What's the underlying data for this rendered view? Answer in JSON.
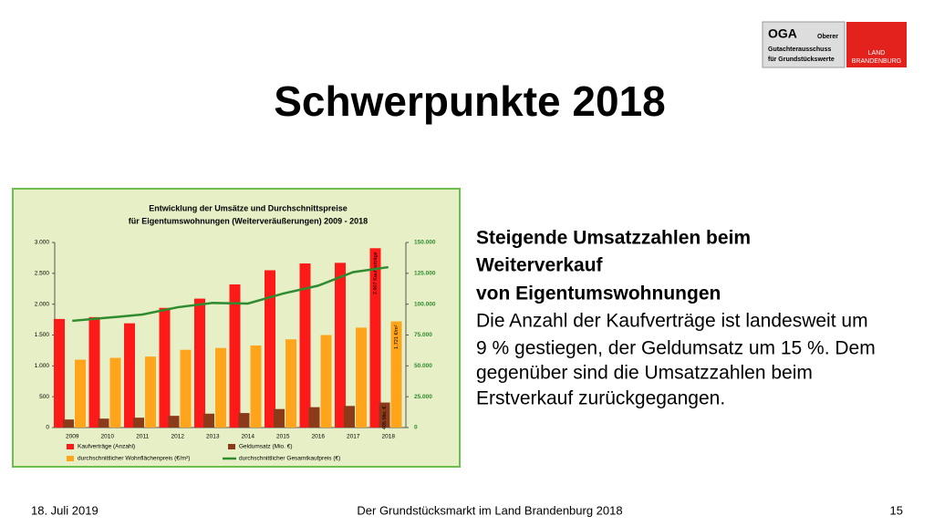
{
  "header": {
    "title": "Schwerpunkte 2018",
    "logo": {
      "abbr": "OGA",
      "lines": [
        "Oberer",
        "Gutachterausschuss",
        "für Grundstückswerte"
      ],
      "state": [
        "LAND",
        "BRANDENBURG"
      ]
    }
  },
  "text": {
    "heading": [
      "Steigende Umsatzzahlen beim",
      "Weiterverkauf",
      "von Eigentumswohnungen"
    ],
    "body": [
      "Die Anzahl der Kaufverträge ist landesweit um",
      "9 % gestiegen, der Geldumsatz um 15 %. Dem",
      "gegenüber sind die Umsatzzahlen beim",
      "Erstverkauf zurückgegangen."
    ]
  },
  "footer": {
    "date": "18. Juli 2019",
    "center": "Der Grundstücksmarkt im Land Brandenburg 2018",
    "page": "15"
  },
  "chart_data": {
    "type": "bar-line",
    "title": [
      "Entwicklung der Umsätze und Durchschnittspreise",
      "für Eigentumswohnungen (Weiterveräußerungen) 2009 - 2018"
    ],
    "categories": [
      "2009",
      "2010",
      "2011",
      "2012",
      "2013",
      "2014",
      "2015",
      "2016",
      "2017",
      "2018"
    ],
    "series": [
      {
        "name": "Kaufverträge (Anzahl)",
        "color": "#ff1a1a",
        "type": "bar",
        "values": [
          1760,
          1790,
          1690,
          1940,
          2090,
          2320,
          2550,
          2660,
          2670,
          2907
        ],
        "value_labels": [
          null,
          null,
          null,
          null,
          null,
          null,
          null,
          null,
          null,
          "2.907 Kaufverträge"
        ]
      },
      {
        "name": "Geldumsatz (Mio. €)",
        "color": "#8b3a1a",
        "type": "bar",
        "values": [
          130,
          145,
          160,
          190,
          225,
          235,
          300,
          330,
          350,
          405
        ],
        "value_labels": [
          null,
          null,
          null,
          null,
          null,
          null,
          null,
          null,
          null,
          "405 Mio. €"
        ]
      },
      {
        "name": "durchschnittlicher Wohnflächenpreis (€/m²)",
        "color": "#ffa41b",
        "type": "bar",
        "values": [
          1100,
          1130,
          1150,
          1260,
          1290,
          1330,
          1430,
          1500,
          1620,
          1721
        ],
        "value_labels": [
          null,
          null,
          null,
          null,
          null,
          null,
          null,
          null,
          null,
          "1.721 €/m²"
        ]
      },
      {
        "name": "durchschnittlicher Gesamtkaufpreis (€)",
        "color": "#2e8b2e",
        "type": "line",
        "axis": "y2",
        "values": [
          86500,
          89000,
          91600,
          97500,
          101000,
          100500,
          108600,
          115000,
          126000,
          130000
        ]
      }
    ],
    "ylim": [
      0,
      3000
    ],
    "yticks": [
      0,
      500,
      {
        "value": 1000,
        "label": "1.000"
      },
      {
        "value": 1500,
        "label": "1.500"
      },
      {
        "value": 2000,
        "label": "2.000"
      },
      {
        "value": 2500,
        "label": "2.500"
      },
      {
        "value": 3000,
        "label": "3.000"
      }
    ],
    "y2lim": [
      0,
      150000
    ],
    "y2ticks": [
      0,
      {
        "value": 25000,
        "label": "25.000"
      },
      {
        "value": 50000,
        "label": "50.000"
      },
      {
        "value": 75000,
        "label": "75.000"
      },
      {
        "value": 100000,
        "label": "100.000"
      },
      {
        "value": 125000,
        "label": "125.000"
      },
      {
        "value": 150000,
        "label": "150.000"
      }
    ],
    "grid": false
  }
}
